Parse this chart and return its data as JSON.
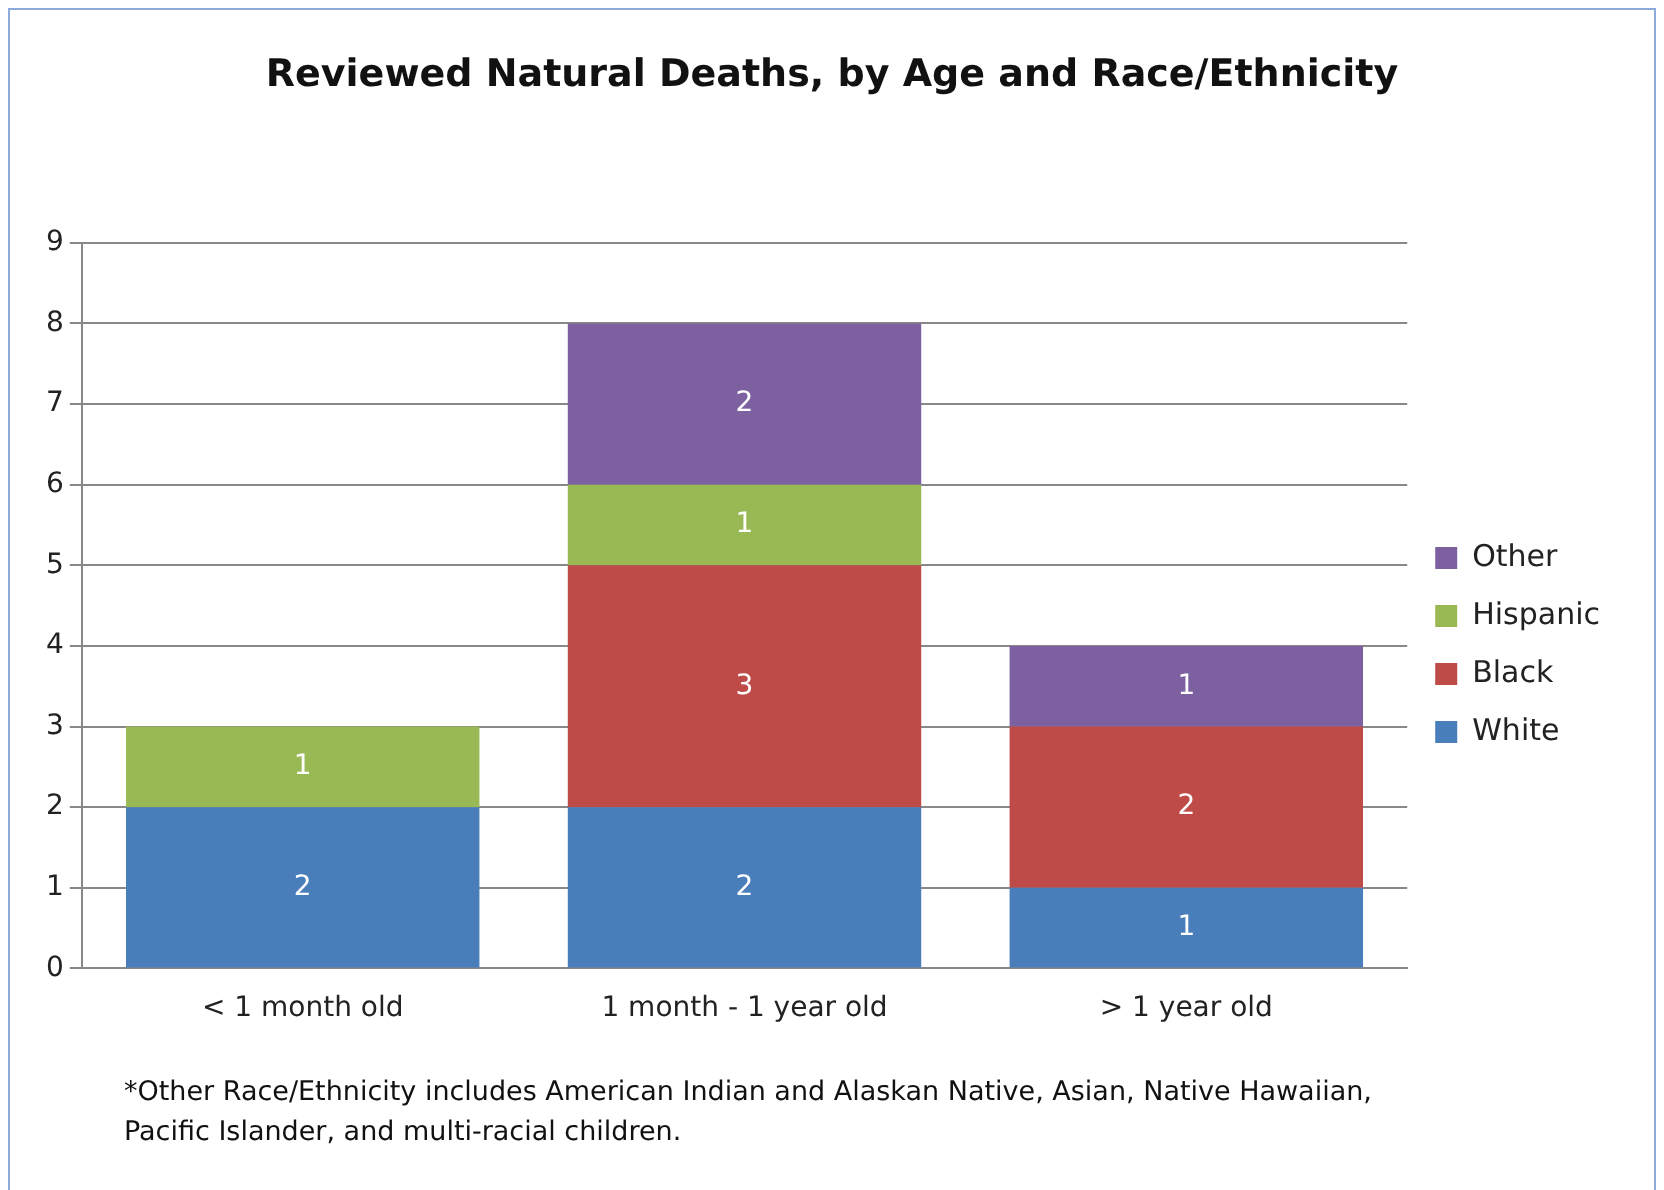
{
  "chart_data": {
    "type": "bar",
    "title": "Reviewed Natural Deaths, by Age and Race/Ethnicity",
    "categories": [
      "< 1 month old",
      "1 month - 1 year old",
      "> 1 year old"
    ],
    "stacked": true,
    "series": [
      {
        "name": "White",
        "color": "#4a7ebb",
        "values": [
          2,
          2,
          1
        ]
      },
      {
        "name": "Black",
        "color": "#be4b48",
        "values": [
          null,
          3,
          2
        ]
      },
      {
        "name": "Hispanic",
        "color": "#98b954",
        "values": [
          1,
          1,
          null
        ]
      },
      {
        "name": "Other",
        "color": "#7d60a0",
        "values": [
          null,
          2,
          1
        ]
      }
    ],
    "ylim": [
      0,
      9
    ],
    "yticks": [
      0,
      1,
      2,
      3,
      4,
      5,
      6,
      7,
      8,
      9
    ],
    "grid": "y",
    "legend": "right",
    "data_labels": true,
    "annotations": [
      "*Other Race/Ethnicity includes American Indian and Alaskan Native, Asian, Native Hawaiian, Pacific Islander, and multi-racial children."
    ]
  }
}
